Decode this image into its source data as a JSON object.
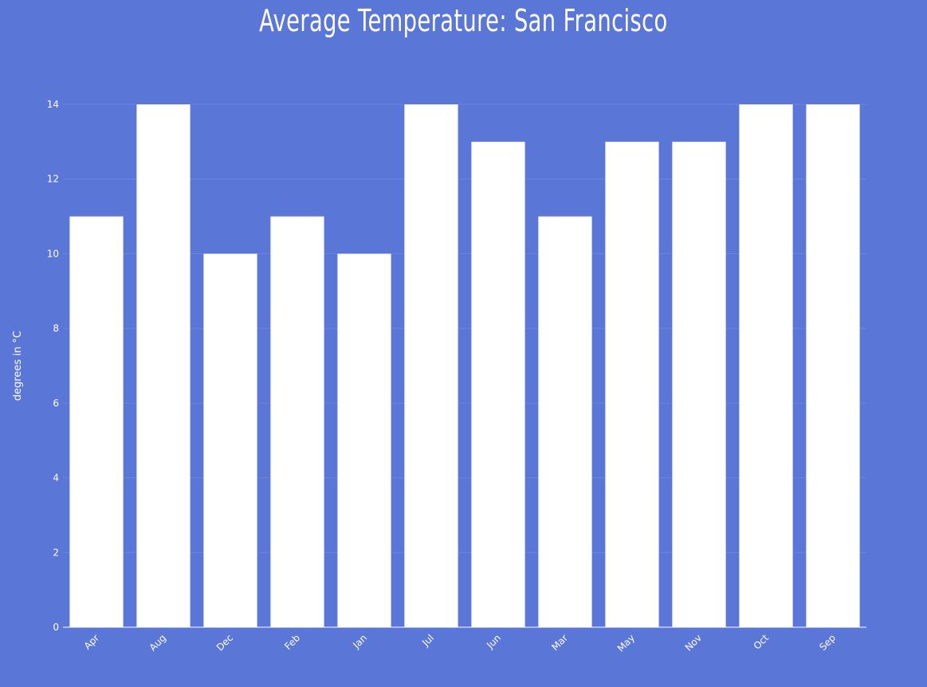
{
  "chart_data": {
    "type": "bar",
    "title": "Average Temperature: San Francisco",
    "xlabel": "",
    "ylabel": "degrees in °C",
    "categories": [
      "Apr",
      "Aug",
      "Dec",
      "Feb",
      "Jan",
      "Jul",
      "Jun",
      "Mar",
      "May",
      "Nov",
      "Oct",
      "Sep"
    ],
    "values": [
      11,
      14,
      10,
      11,
      10,
      14,
      13,
      11,
      13,
      13,
      14,
      14
    ],
    "ylim": [
      0,
      14
    ],
    "yticks": [
      0,
      2,
      4,
      6,
      8,
      10,
      12,
      14
    ],
    "grid": true,
    "legend": "none",
    "colors": {
      "background": "#5a76d6",
      "bar": "#ffffff",
      "grid": "#6a86e0",
      "text": "#ffffff"
    }
  }
}
